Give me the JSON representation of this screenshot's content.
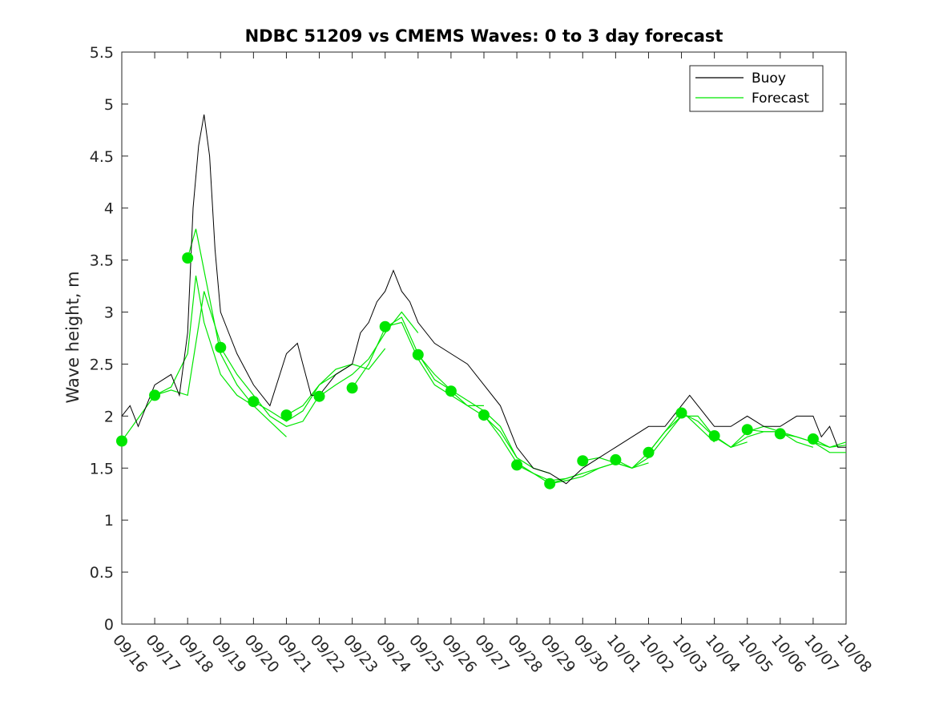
{
  "chart_data": {
    "type": "line",
    "title": "NDBC 51209 vs CMEMS Waves: 0 to 3 day forecast",
    "xlabel": "",
    "ylabel": "Wave height, m",
    "ylim": [
      0,
      5.5
    ],
    "yticks": [
      0,
      0.5,
      1,
      1.5,
      2,
      2.5,
      3,
      3.5,
      4,
      4.5,
      5,
      5.5
    ],
    "ytick_labels": [
      "0",
      "0.5",
      "1",
      "1.5",
      "2",
      "2.5",
      "3",
      "3.5",
      "4",
      "4.5",
      "5",
      "5.5"
    ],
    "xlim": [
      "09/16",
      "10/08"
    ],
    "xtick_labels": [
      "09/16",
      "09/17",
      "09/18",
      "09/19",
      "09/20",
      "09/21",
      "09/22",
      "09/23",
      "09/24",
      "09/25",
      "09/26",
      "09/27",
      "09/28",
      "09/29",
      "09/30",
      "10/01",
      "10/02",
      "10/03",
      "10/04",
      "10/05",
      "10/06",
      "10/07",
      "10/08"
    ],
    "grid": false,
    "legend_position": "top-right",
    "colors": {
      "buoy": "#000000",
      "forecast": "#00e600"
    },
    "buoy": {
      "name": "Buoy",
      "x": [
        "09/16 00:00",
        "09/16 06:00",
        "09/16 12:00",
        "09/17 00:00",
        "09/17 12:00",
        "09/17 18:00",
        "09/18 00:00",
        "09/18 04:00",
        "09/18 08:00",
        "09/18 12:00",
        "09/18 16:00",
        "09/18 20:00",
        "09/19 00:00",
        "09/19 06:00",
        "09/19 12:00",
        "09/20 00:00",
        "09/20 12:00",
        "09/21 00:00",
        "09/21 08:00",
        "09/21 12:00",
        "09/21 18:00",
        "09/22 00:00",
        "09/22 12:00",
        "09/23 00:00",
        "09/23 06:00",
        "09/23 12:00",
        "09/23 18:00",
        "09/24 00:00",
        "09/24 06:00",
        "09/24 12:00",
        "09/24 18:00",
        "09/25 00:00",
        "09/25 12:00",
        "09/26 00:00",
        "09/26 12:00",
        "09/27 00:00",
        "09/27 12:00",
        "09/28 00:00",
        "09/28 12:00",
        "09/29 00:00",
        "09/29 12:00",
        "09/30 00:00",
        "09/30 12:00",
        "10/01 00:00",
        "10/01 12:00",
        "10/02 00:00",
        "10/02 12:00",
        "10/03 00:00",
        "10/03 06:00",
        "10/03 12:00",
        "10/04 00:00",
        "10/04 12:00",
        "10/05 00:00",
        "10/05 12:00",
        "10/06 00:00",
        "10/06 12:00",
        "10/07 00:00",
        "10/07 06:00",
        "10/07 12:00",
        "10/07 18:00",
        "10/08 00:00"
      ],
      "y": [
        2.0,
        2.1,
        1.9,
        2.3,
        2.4,
        2.2,
        2.8,
        4.0,
        4.6,
        4.9,
        4.5,
        3.6,
        3.0,
        2.8,
        2.6,
        2.3,
        2.1,
        2.6,
        2.7,
        2.5,
        2.2,
        2.2,
        2.4,
        2.5,
        2.8,
        2.9,
        3.1,
        3.2,
        3.4,
        3.2,
        3.1,
        2.9,
        2.7,
        2.6,
        2.5,
        2.3,
        2.1,
        1.7,
        1.5,
        1.45,
        1.35,
        1.5,
        1.6,
        1.7,
        1.8,
        1.9,
        1.9,
        2.1,
        2.2,
        2.1,
        1.9,
        1.9,
        2.0,
        1.9,
        1.9,
        2.0,
        2.0,
        1.8,
        1.9,
        1.7,
        1.7
      ]
    },
    "forecast": {
      "name": "Forecast",
      "runs": [
        {
          "x": [
            "09/16 00:00",
            "09/16 12:00",
            "09/17 00:00",
            "09/17 12:00",
            "09/18 00:00",
            "09/18 12:00",
            "09/19 00:00"
          ],
          "y": [
            1.76,
            1.98,
            2.2,
            2.25,
            2.2,
            3.2,
            2.7
          ]
        },
        {
          "x": [
            "09/17 00:00",
            "09/17 12:00",
            "09/18 00:00",
            "09/18 06:00",
            "09/18 12:00",
            "09/19 00:00",
            "09/19 12:00",
            "09/20 00:00"
          ],
          "y": [
            2.2,
            2.28,
            2.6,
            3.35,
            2.9,
            2.4,
            2.2,
            2.1
          ]
        },
        {
          "x": [
            "09/18 00:00",
            "09/18 06:00",
            "09/18 12:00",
            "09/19 00:00",
            "09/19 12:00",
            "09/20 00:00",
            "09/20 12:00",
            "09/21 00:00"
          ],
          "y": [
            3.52,
            3.8,
            3.4,
            2.6,
            2.3,
            2.1,
            1.95,
            1.8
          ]
        },
        {
          "x": [
            "09/19 00:00",
            "09/19 12:00",
            "09/20 00:00",
            "09/20 12:00",
            "09/21 00:00",
            "09/21 12:00",
            "09/22 00:00"
          ],
          "y": [
            2.66,
            2.4,
            2.2,
            2.0,
            1.9,
            1.95,
            2.2
          ]
        },
        {
          "x": [
            "09/20 00:00",
            "09/20 12:00",
            "09/21 00:00",
            "09/21 12:00",
            "09/22 00:00",
            "09/22 12:00",
            "09/23 00:00"
          ],
          "y": [
            2.14,
            2.05,
            1.95,
            2.05,
            2.3,
            2.4,
            2.5
          ]
        },
        {
          "x": [
            "09/21 00:00",
            "09/21 12:00",
            "09/22 00:00",
            "09/22 12:00",
            "09/23 00:00",
            "09/23 12:00",
            "09/24 00:00"
          ],
          "y": [
            2.01,
            2.1,
            2.3,
            2.45,
            2.5,
            2.45,
            2.65
          ]
        },
        {
          "x": [
            "09/22 00:00",
            "09/22 12:00",
            "09/23 00:00",
            "09/23 12:00",
            "09/24 00:00",
            "09/24 12:00",
            "09/25 00:00"
          ],
          "y": [
            2.19,
            2.3,
            2.4,
            2.55,
            2.8,
            3.0,
            2.8
          ]
        },
        {
          "x": [
            "09/23 00:00",
            "09/23 12:00",
            "09/24 00:00",
            "09/24 12:00",
            "09/25 00:00",
            "09/25 12:00",
            "09/26 00:00"
          ],
          "y": [
            2.27,
            2.5,
            2.85,
            2.95,
            2.6,
            2.35,
            2.25
          ]
        },
        {
          "x": [
            "09/24 00:00",
            "09/24 12:00",
            "09/25 00:00",
            "09/25 12:00",
            "09/26 00:00",
            "09/26 12:00",
            "09/27 00:00"
          ],
          "y": [
            2.86,
            2.9,
            2.55,
            2.3,
            2.2,
            2.1,
            2.1
          ]
        },
        {
          "x": [
            "09/25 00:00",
            "09/25 12:00",
            "09/26 00:00",
            "09/26 12:00",
            "09/27 00:00",
            "09/27 12:00",
            "09/28 00:00"
          ],
          "y": [
            2.59,
            2.4,
            2.25,
            2.15,
            2.05,
            1.9,
            1.6
          ]
        },
        {
          "x": [
            "09/26 00:00",
            "09/26 12:00",
            "09/27 00:00",
            "09/27 12:00",
            "09/28 00:00",
            "09/28 12:00",
            "09/29 00:00"
          ],
          "y": [
            2.24,
            2.1,
            2.0,
            1.85,
            1.6,
            1.5,
            1.45
          ]
        },
        {
          "x": [
            "09/27 00:00",
            "09/27 12:00",
            "09/28 00:00",
            "09/28 12:00",
            "09/29 00:00",
            "09/29 12:00",
            "09/30 00:00"
          ],
          "y": [
            2.01,
            1.8,
            1.55,
            1.45,
            1.38,
            1.4,
            1.45
          ]
        },
        {
          "x": [
            "09/28 00:00",
            "09/28 12:00",
            "09/29 00:00",
            "09/29 12:00",
            "09/30 00:00",
            "09/30 12:00",
            "10/01 00:00"
          ],
          "y": [
            1.53,
            1.45,
            1.35,
            1.38,
            1.42,
            1.5,
            1.55
          ]
        },
        {
          "x": [
            "09/29 00:00",
            "09/29 12:00",
            "09/30 00:00",
            "09/30 12:00",
            "10/01 00:00",
            "10/01 12:00",
            "10/02 00:00"
          ],
          "y": [
            1.35,
            1.4,
            1.45,
            1.5,
            1.55,
            1.5,
            1.55
          ]
        },
        {
          "x": [
            "09/30 00:00",
            "09/30 12:00",
            "10/01 00:00",
            "10/01 12:00",
            "10/02 00:00",
            "10/02 12:00",
            "10/03 00:00"
          ],
          "y": [
            1.57,
            1.6,
            1.55,
            1.5,
            1.6,
            1.8,
            2.0
          ]
        },
        {
          "x": [
            "10/01 00:00",
            "10/01 12:00",
            "10/02 00:00",
            "10/02 12:00",
            "10/03 00:00",
            "10/03 12:00",
            "10/04 00:00"
          ],
          "y": [
            1.58,
            1.5,
            1.65,
            1.85,
            2.05,
            1.9,
            1.75
          ]
        },
        {
          "x": [
            "10/02 00:00",
            "10/02 12:00",
            "10/03 00:00",
            "10/03 12:00",
            "10/04 00:00",
            "10/04 12:00",
            "10/05 00:00"
          ],
          "y": [
            1.65,
            1.85,
            2.0,
            2.0,
            1.8,
            1.7,
            1.75
          ]
        },
        {
          "x": [
            "10/03 00:00",
            "10/03 12:00",
            "10/04 00:00",
            "10/04 12:00",
            "10/05 00:00",
            "10/05 12:00",
            "10/06 00:00"
          ],
          "y": [
            2.03,
            1.95,
            1.8,
            1.7,
            1.85,
            1.9,
            1.85
          ]
        },
        {
          "x": [
            "10/04 00:00",
            "10/04 12:00",
            "10/05 00:00",
            "10/05 12:00",
            "10/06 00:00",
            "10/06 12:00",
            "10/07 00:00"
          ],
          "y": [
            1.81,
            1.7,
            1.8,
            1.85,
            1.85,
            1.75,
            1.7
          ]
        },
        {
          "x": [
            "10/05 00:00",
            "10/05 12:00",
            "10/06 00:00",
            "10/06 12:00",
            "10/07 00:00",
            "10/07 12:00",
            "10/08 00:00"
          ],
          "y": [
            1.87,
            1.85,
            1.85,
            1.8,
            1.75,
            1.7,
            1.72
          ]
        },
        {
          "x": [
            "10/06 00:00",
            "10/06 12:00",
            "10/07 00:00",
            "10/07 12:00",
            "10/08 00:00"
          ],
          "y": [
            1.83,
            1.8,
            1.75,
            1.65,
            1.65
          ]
        },
        {
          "x": [
            "10/07 00:00",
            "10/07 12:00",
            "10/08 00:00"
          ],
          "y": [
            1.78,
            1.7,
            1.75
          ]
        }
      ]
    }
  }
}
